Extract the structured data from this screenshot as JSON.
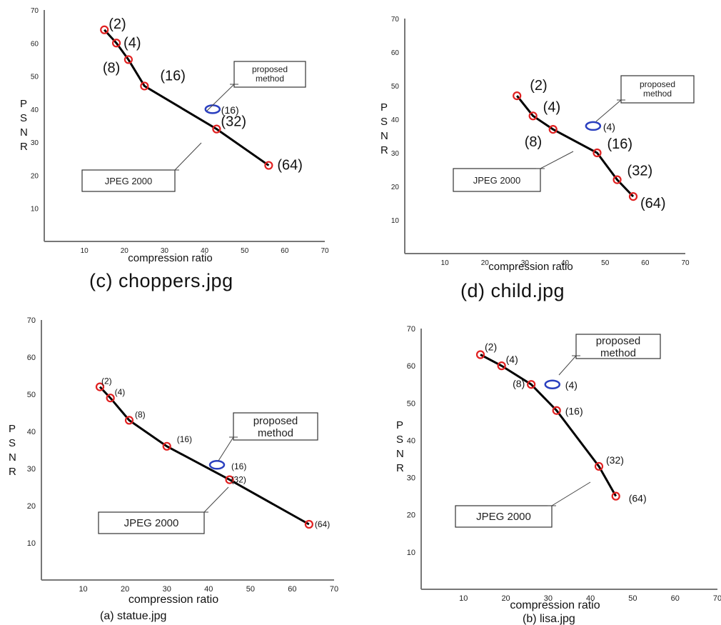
{
  "chart_data": [
    {
      "id": "c",
      "type": "line",
      "caption": "(c) choppers.jpg",
      "xlabel": "compression ratio",
      "ylabel": "PSNR",
      "xticks": [
        10,
        20,
        30,
        40,
        50,
        60,
        70
      ],
      "yticks": [
        10,
        20,
        30,
        40,
        50,
        60,
        70
      ],
      "xlim": [
        0,
        70
      ],
      "ylim": [
        0,
        70
      ],
      "series": [
        {
          "name": "JPEG 2000",
          "x": [
            15,
            18,
            21,
            25,
            43,
            56
          ],
          "y": [
            64,
            60,
            55,
            47,
            34,
            23
          ],
          "labels": [
            "(2)",
            "(4)",
            "(8)",
            "(16)",
            "(32)",
            "(64)"
          ]
        },
        {
          "name": "proposed method",
          "x": [
            42
          ],
          "y": [
            40
          ],
          "labels": [
            "(16)"
          ]
        }
      ]
    },
    {
      "id": "d",
      "type": "line",
      "caption": "(d) child.jpg",
      "xlabel": "compression ratio",
      "ylabel": "PSNR",
      "xticks": [
        10,
        20,
        30,
        40,
        50,
        60,
        70
      ],
      "yticks": [
        10,
        20,
        30,
        40,
        50,
        60,
        70
      ],
      "xlim": [
        0,
        70
      ],
      "ylim": [
        0,
        70
      ],
      "series": [
        {
          "name": "JPEG 2000",
          "x": [
            28,
            32,
            37,
            48,
            53,
            57
          ],
          "y": [
            47,
            41,
            37,
            30,
            22,
            17
          ],
          "labels": [
            "(2)",
            "(4)",
            "(8)",
            "(16)",
            "(32)",
            "(64)"
          ]
        },
        {
          "name": "proposed method",
          "x": [
            47
          ],
          "y": [
            38
          ],
          "labels": [
            "(4)"
          ]
        }
      ]
    },
    {
      "id": "a",
      "type": "line",
      "caption": "(a) statue.jpg",
      "xlabel": "compression ratio",
      "ylabel": "PSNR",
      "xticks": [
        10,
        20,
        30,
        40,
        50,
        60,
        70
      ],
      "yticks": [
        10,
        20,
        30,
        40,
        50,
        60,
        70
      ],
      "xlim": [
        0,
        70
      ],
      "ylim": [
        0,
        70
      ],
      "series": [
        {
          "name": "JPEG 2000",
          "x": [
            14,
            16.5,
            21,
            30,
            45,
            64
          ],
          "y": [
            52,
            49,
            43,
            36,
            27,
            15
          ],
          "labels": [
            "(2)",
            "(4)",
            "(8)",
            "(16)",
            "(32)",
            "(64)"
          ]
        },
        {
          "name": "proposed method",
          "x": [
            42
          ],
          "y": [
            31
          ],
          "labels": [
            "(16)"
          ]
        }
      ]
    },
    {
      "id": "b",
      "type": "line",
      "caption": "(b) lisa.jpg",
      "xlabel": "compression ratio",
      "ylabel": "PSNR",
      "xticks": [
        10,
        20,
        30,
        40,
        50,
        60,
        70
      ],
      "yticks": [
        10,
        20,
        30,
        40,
        50,
        60,
        70
      ],
      "xlim": [
        0,
        70
      ],
      "ylim": [
        0,
        70
      ],
      "series": [
        {
          "name": "JPEG 2000",
          "x": [
            14,
            19,
            26,
            32,
            42,
            46
          ],
          "y": [
            63,
            60,
            55,
            48,
            33,
            25
          ],
          "labels": [
            "(2)",
            "(4)",
            "(8)",
            "(16)",
            "(32)",
            "(64)"
          ]
        },
        {
          "name": "proposed method",
          "x": [
            31
          ],
          "y": [
            55
          ],
          "labels": [
            "(4)"
          ]
        }
      ]
    }
  ],
  "colors": {
    "jpeg_marker": "#e02020",
    "proposed_marker": "#2a3fbf",
    "curve": "#000000",
    "axis": "#777777"
  }
}
